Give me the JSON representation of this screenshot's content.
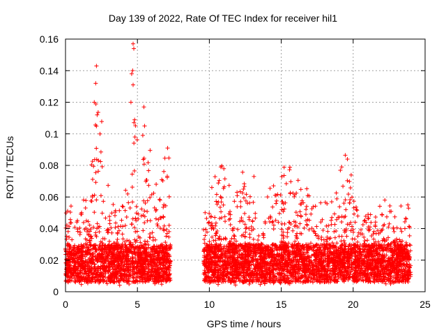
{
  "chart_data": {
    "type": "scatter",
    "title": "Day 139 of 2022, Rate Of TEC Index for receiver hil1",
    "xlabel": "GPS time / hours",
    "ylabel": "ROTI / TECUs",
    "xlim": [
      0,
      25
    ],
    "ylim": [
      0,
      0.16
    ],
    "xticks": [
      0,
      5,
      10,
      15,
      20,
      25
    ],
    "yticks": [
      0,
      0.02,
      0.04,
      0.06,
      0.08,
      0.1,
      0.12,
      0.14,
      0.16
    ],
    "ytick_labels": [
      "0",
      "0.02",
      "0.04",
      "0.06",
      "0.08",
      "0.1",
      "0.12",
      "0.14",
      "0.16"
    ],
    "grid": true,
    "marker": "+",
    "color": "#ff0000",
    "segments": [
      {
        "start": 0.0,
        "end": 7.3
      },
      {
        "start": 9.6,
        "end": 24.0
      }
    ],
    "notable_points": [
      {
        "x": 2.15,
        "y": 0.143
      },
      {
        "x": 2.1,
        "y": 0.132
      },
      {
        "x": 2.0,
        "y": 0.12
      },
      {
        "x": 2.2,
        "y": 0.112
      },
      {
        "x": 4.7,
        "y": 0.157
      },
      {
        "x": 4.75,
        "y": 0.154
      },
      {
        "x": 4.6,
        "y": 0.138
      },
      {
        "x": 4.7,
        "y": 0.131
      },
      {
        "x": 4.55,
        "y": 0.12
      },
      {
        "x": 5.45,
        "y": 0.117
      },
      {
        "x": 5.5,
        "y": 0.105
      },
      {
        "x": 7.1,
        "y": 0.091
      },
      {
        "x": 10.8,
        "y": 0.079
      },
      {
        "x": 13.1,
        "y": 0.073
      },
      {
        "x": 19.6,
        "y": 0.084
      },
      {
        "x": 19.2,
        "y": 0.079
      },
      {
        "x": 22.2,
        "y": 0.058
      },
      {
        "x": 23.8,
        "y": 0.055
      }
    ]
  }
}
